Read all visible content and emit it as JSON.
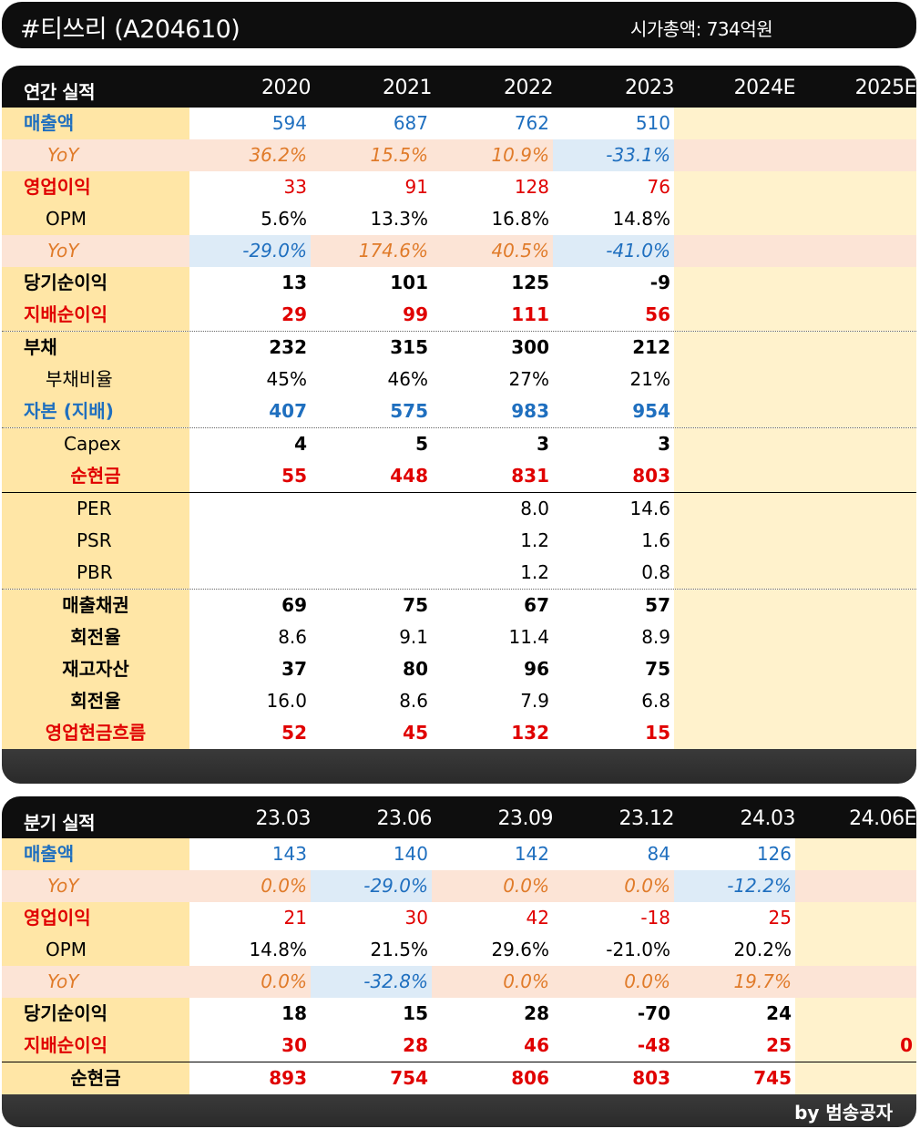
{
  "title": "#티쓰리 (A204610)",
  "market_cap": "시가총액: 734억원",
  "footer": "by 범송공자",
  "annual": {
    "header_label": "연간 실적",
    "columns": [
      "2020",
      "2021",
      "2022",
      "2023",
      "2024E",
      "2025E"
    ],
    "rows": [
      {
        "label": "매출액",
        "values": [
          "594",
          "687",
          "762",
          "510",
          "",
          ""
        ]
      },
      {
        "label": "YoY",
        "values": [
          "36.2%",
          "15.5%",
          "10.9%",
          "-33.1%",
          "",
          ""
        ]
      },
      {
        "label": "영업이익",
        "values": [
          "33",
          "91",
          "128",
          "76",
          "",
          ""
        ]
      },
      {
        "label": "OPM",
        "values": [
          "5.6%",
          "13.3%",
          "16.8%",
          "14.8%",
          "",
          ""
        ]
      },
      {
        "label": "YoY",
        "values": [
          "-29.0%",
          "174.6%",
          "40.5%",
          "-41.0%",
          "",
          ""
        ]
      },
      {
        "label": "당기순이익",
        "values": [
          "13",
          "101",
          "125",
          "-9",
          "",
          ""
        ]
      },
      {
        "label": "지배순이익",
        "values": [
          "29",
          "99",
          "111",
          "56",
          "",
          ""
        ]
      },
      {
        "label": "부채",
        "values": [
          "232",
          "315",
          "300",
          "212",
          "",
          ""
        ]
      },
      {
        "label": "부채비율",
        "values": [
          "45%",
          "46%",
          "27%",
          "21%",
          "",
          ""
        ]
      },
      {
        "label": "자본 (지배)",
        "values": [
          "407",
          "575",
          "983",
          "954",
          "",
          ""
        ]
      },
      {
        "label": "Capex",
        "values": [
          "4",
          "5",
          "3",
          "3",
          "",
          ""
        ]
      },
      {
        "label": "순현금",
        "values": [
          "55",
          "448",
          "831",
          "803",
          "",
          ""
        ]
      },
      {
        "label": "PER",
        "values": [
          "",
          "",
          "8.0",
          "14.6",
          "",
          ""
        ]
      },
      {
        "label": "PSR",
        "values": [
          "",
          "",
          "1.2",
          "1.6",
          "",
          ""
        ]
      },
      {
        "label": "PBR",
        "values": [
          "",
          "",
          "1.2",
          "0.8",
          "",
          ""
        ]
      },
      {
        "label": "매출채권",
        "values": [
          "69",
          "75",
          "67",
          "57",
          "",
          ""
        ]
      },
      {
        "label": "회전율",
        "values": [
          "8.6",
          "9.1",
          "11.4",
          "8.9",
          "",
          ""
        ]
      },
      {
        "label": "재고자산",
        "values": [
          "37",
          "80",
          "96",
          "75",
          "",
          ""
        ]
      },
      {
        "label": "회전율",
        "values": [
          "16.0",
          "8.6",
          "7.9",
          "6.8",
          "",
          ""
        ]
      },
      {
        "label": "영업현금흐름",
        "values": [
          "52",
          "45",
          "132",
          "15",
          "",
          ""
        ]
      }
    ]
  },
  "quarterly": {
    "header_label": "분기 실적",
    "columns": [
      "23.03",
      "23.06",
      "23.09",
      "23.12",
      "24.03",
      "24.06E"
    ],
    "rows": [
      {
        "label": "매출액",
        "values": [
          "143",
          "140",
          "142",
          "84",
          "126",
          ""
        ]
      },
      {
        "label": "YoY",
        "values": [
          "0.0%",
          "-29.0%",
          "0.0%",
          "0.0%",
          "-12.2%",
          ""
        ]
      },
      {
        "label": "영업이익",
        "values": [
          "21",
          "30",
          "42",
          "-18",
          "25",
          ""
        ]
      },
      {
        "label": "OPM",
        "values": [
          "14.8%",
          "21.5%",
          "29.6%",
          "-21.0%",
          "20.2%",
          ""
        ]
      },
      {
        "label": "YoY",
        "values": [
          "0.0%",
          "-32.8%",
          "0.0%",
          "0.0%",
          "19.7%",
          ""
        ]
      },
      {
        "label": "당기순이익",
        "values": [
          "18",
          "15",
          "28",
          "-70",
          "24",
          ""
        ]
      },
      {
        "label": "지배순이익",
        "values": [
          "30",
          "28",
          "46",
          "-48",
          "25",
          "0"
        ]
      },
      {
        "label": "순현금",
        "values": [
          "893",
          "754",
          "806",
          "803",
          "745",
          ""
        ]
      }
    ]
  }
}
